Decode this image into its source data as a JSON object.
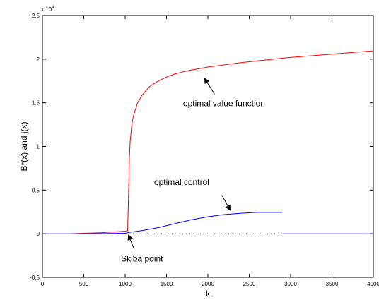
{
  "chart_data": {
    "type": "line",
    "title": "",
    "xlabel": "k",
    "ylabel": "B*(x) and j(x)",
    "xlim": [
      0,
      4000
    ],
    "ylim": [
      -5000,
      25000
    ],
    "y_exponent_label": "x 10",
    "y_exponent_power": "4",
    "grid": false,
    "legend": "none",
    "x_ticks": [
      0,
      500,
      1000,
      1500,
      2000,
      2500,
      3000,
      3500,
      4000
    ],
    "x_tick_labels": [
      "0",
      "500",
      "1000",
      "1500",
      "2000",
      "2500",
      "3000",
      "3500",
      "4000"
    ],
    "y_ticks": [
      -5000,
      0,
      5000,
      10000,
      15000,
      20000,
      25000
    ],
    "y_tick_labels": [
      "-0.5",
      "0",
      "0.5",
      "1",
      "1.5",
      "2",
      "2.5"
    ],
    "series": [
      {
        "key": "value_function",
        "color": "#ff0000",
        "style": "solid",
        "x": [
          350,
          500,
          700,
          900,
          1000,
          1030,
          1040,
          1050,
          1060,
          1080,
          1100,
          1150,
          1200,
          1250,
          1300,
          1400,
          1500,
          1600,
          1700,
          1800,
          2000,
          2200,
          2400,
          2600,
          2800,
          3000,
          3200,
          3400,
          3600,
          3800,
          4000
        ],
        "y": [
          0,
          50,
          120,
          220,
          300,
          350,
          4000,
          8500,
          10500,
          12500,
          13500,
          15000,
          15800,
          16400,
          16900,
          17500,
          17950,
          18300,
          18550,
          18750,
          19100,
          19350,
          19600,
          19800,
          20000,
          20200,
          20350,
          20500,
          20650,
          20800,
          20950
        ]
      },
      {
        "key": "optimal_control",
        "color": "#0000ff",
        "style": "solid",
        "x": [
          0,
          500,
          1000,
          1050,
          1200,
          1400,
          1600,
          1800,
          2000,
          2200,
          2400,
          2600,
          2750,
          2900
        ],
        "y": [
          0,
          0,
          50,
          150,
          350,
          700,
          1150,
          1600,
          1950,
          2200,
          2350,
          2450,
          2450,
          2450
        ]
      },
      {
        "key": "optimal_control_zero_branch",
        "color": "#0000ff",
        "style": "solid",
        "x": [
          2900,
          4000
        ],
        "y": [
          0,
          0
        ]
      },
      {
        "key": "zero_dotted",
        "color": "#0000ff",
        "style": "dotted",
        "x": [
          1050,
          2900
        ],
        "y": [
          0,
          0
        ]
      }
    ],
    "annotations": [
      {
        "key": "vf",
        "text": "optimal value function",
        "text_x": 1700,
        "text_y": 14600,
        "arrow_from_x": 2080,
        "arrow_from_y": 16000,
        "arrow_to_x": 1960,
        "arrow_to_y": 17800
      },
      {
        "key": "oc",
        "text": "optimal control",
        "text_x": 1350,
        "text_y": 5600,
        "arrow_from_x": 2170,
        "arrow_from_y": 4400,
        "arrow_to_x": 2270,
        "arrow_to_y": 2700
      },
      {
        "key": "skiba",
        "text": "Skiba point",
        "text_x": 950,
        "text_y": -3200,
        "arrow_from_x": 1110,
        "arrow_from_y": -1800,
        "arrow_to_x": 1040,
        "arrow_to_y": -150
      }
    ]
  }
}
